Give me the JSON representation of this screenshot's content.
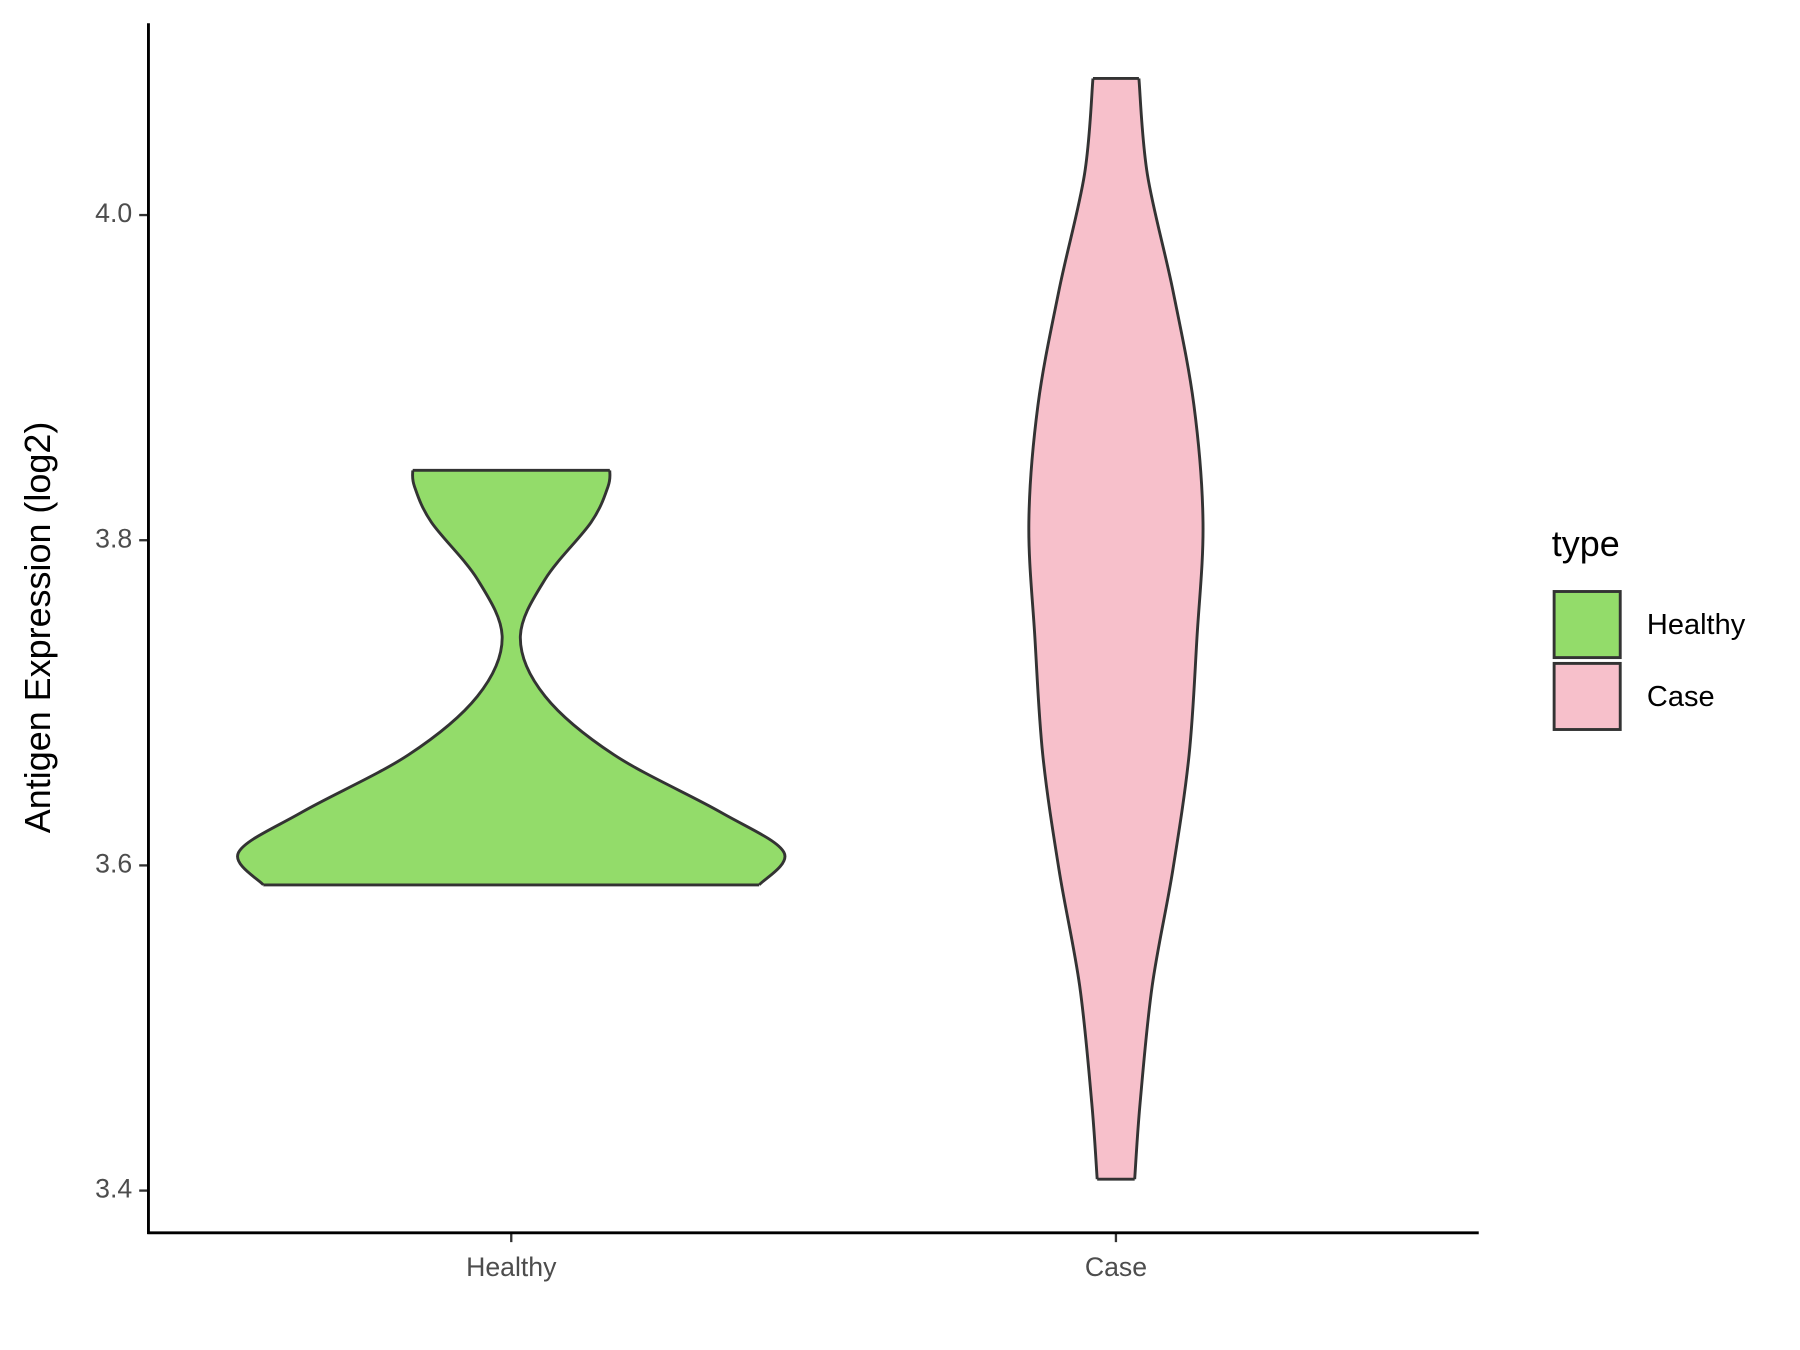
{
  "chart_data": {
    "type": "violin",
    "y_label": "Antigen Expression (log2)",
    "categories": [
      "Healthy",
      "Case"
    ],
    "legend_title": "type",
    "legend_position": "right",
    "ylim": [
      3.374,
      4.118
    ],
    "yticks": [
      {
        "value": 3.4,
        "label": "3.4"
      },
      {
        "value": 3.6,
        "label": "3.6"
      },
      {
        "value": 3.8,
        "label": "3.8"
      },
      {
        "value": 4.0,
        "label": "4.0"
      }
    ],
    "series": [
      {
        "name": "Healthy",
        "color": "#93dc6a",
        "y": [
          3.588,
          3.608,
          3.633,
          3.668,
          3.704,
          3.74,
          3.776,
          3.811,
          3.833,
          3.843
        ],
        "width": [
          0.41,
          0.451,
          0.345,
          0.17,
          0.056,
          0.015,
          0.056,
          0.132,
          0.16,
          0.163
        ]
      },
      {
        "name": "Case",
        "color": "#f7c0cb",
        "y": [
          3.407,
          3.454,
          3.526,
          3.597,
          3.668,
          3.74,
          3.811,
          3.883,
          3.954,
          4.025,
          4.084
        ],
        "width": [
          0.031,
          0.04,
          0.06,
          0.094,
          0.121,
          0.134,
          0.144,
          0.129,
          0.094,
          0.052,
          0.038
        ]
      }
    ]
  }
}
